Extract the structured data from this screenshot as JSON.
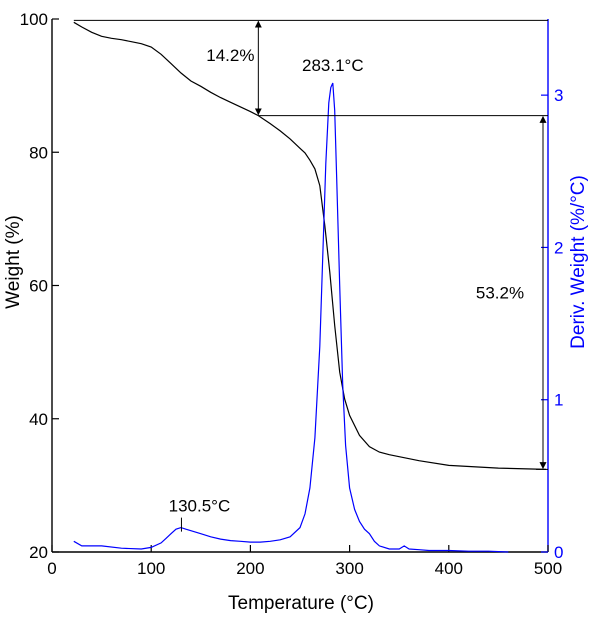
{
  "chart_data": {
    "type": "line",
    "title": "",
    "xlabel": "Temperature (°C)",
    "ylabel": "Weight (%)",
    "y2label": "Deriv. Weight (%/°C)",
    "xlim": [
      0,
      500
    ],
    "ylim": [
      20,
      100
    ],
    "y2lim": [
      0,
      3.5
    ],
    "x_ticks": [
      "0",
      "100",
      "200",
      "300",
      "400",
      "500"
    ],
    "y_ticks": [
      "20",
      "40",
      "60",
      "80",
      "100"
    ],
    "y2_ticks": [
      "0",
      "1",
      "2",
      "3"
    ],
    "grid": false,
    "legend": "none",
    "colors": {
      "weight": "#000000",
      "deriv": "#0000ff"
    },
    "series": [
      {
        "axis": "left",
        "color": "#000000",
        "x": [
          22,
          30,
          40,
          50,
          60,
          70,
          80,
          90,
          100,
          110,
          120,
          130,
          140,
          150,
          160,
          170,
          180,
          190,
          200,
          208,
          220,
          230,
          240,
          250,
          255,
          260,
          265,
          270,
          275,
          280,
          285,
          290,
          295,
          300,
          310,
          320,
          330,
          340,
          350,
          370,
          400,
          450,
          498
        ],
        "y": [
          99.5,
          98.8,
          98.0,
          97.4,
          97.1,
          96.9,
          96.6,
          96.3,
          95.8,
          94.7,
          93.3,
          91.9,
          90.7,
          89.9,
          89.0,
          88.2,
          87.5,
          86.8,
          86.1,
          85.5,
          84.3,
          83.2,
          82.0,
          80.6,
          79.9,
          78.8,
          77.5,
          75.0,
          69.0,
          62.0,
          54.0,
          47.0,
          43.0,
          40.5,
          37.5,
          35.8,
          35.0,
          34.6,
          34.3,
          33.7,
          33.0,
          32.6,
          32.4
        ]
      },
      {
        "axis": "right",
        "color": "#0000ff",
        "x": [
          22,
          30,
          50,
          70,
          90,
          100,
          110,
          115,
          120,
          125,
          130,
          135,
          140,
          150,
          160,
          170,
          180,
          190,
          200,
          210,
          220,
          230,
          240,
          250,
          255,
          260,
          265,
          270,
          273,
          276,
          279,
          281,
          283.1,
          285,
          287,
          290,
          293,
          296,
          300,
          305,
          310,
          315,
          320,
          325,
          330,
          340,
          350,
          355,
          360,
          370,
          380,
          400,
          420,
          440,
          460
        ],
        "y": [
          0.07,
          0.04,
          0.04,
          0.025,
          0.02,
          0.03,
          0.06,
          0.09,
          0.12,
          0.15,
          0.16,
          0.15,
          0.14,
          0.12,
          0.1,
          0.085,
          0.075,
          0.07,
          0.065,
          0.065,
          0.07,
          0.08,
          0.1,
          0.16,
          0.25,
          0.42,
          0.75,
          1.35,
          1.95,
          2.55,
          2.95,
          3.05,
          3.08,
          2.9,
          2.45,
          1.75,
          1.1,
          0.7,
          0.42,
          0.28,
          0.2,
          0.15,
          0.12,
          0.07,
          0.04,
          0.02,
          0.02,
          0.04,
          0.02,
          0.015,
          0.01,
          0.01,
          0.005,
          0.005,
          0.0
        ]
      }
    ],
    "annotations": {
      "first_loss": "14.2%",
      "first_loss_from": {
        "x": 22,
        "y": 99.8
      },
      "first_loss_to": {
        "x": 208,
        "y": 85.5
      },
      "second_loss": "53.2%",
      "second_loss_from": {
        "x": 208,
        "y": 85.5
      },
      "second_loss_to": {
        "x": 498,
        "y": 32.4
      },
      "peak_main_label": "283.1°C",
      "peak_main_x": 283.1,
      "peak_main_y": 3.08,
      "peak_minor_label": "130.5°C",
      "peak_minor_x": 130.5,
      "peak_minor_y": 0.16
    }
  }
}
